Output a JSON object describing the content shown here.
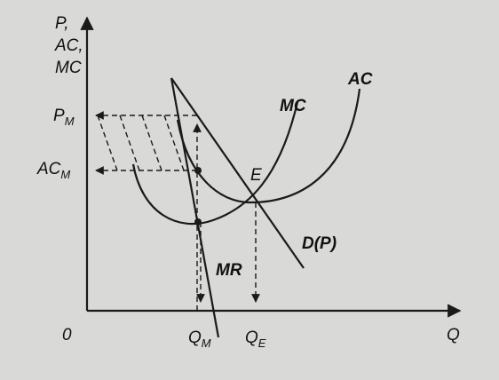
{
  "y_axis": {
    "lines": [
      "P,",
      "AC,",
      "MC"
    ]
  },
  "x_axis": {
    "label": "Q"
  },
  "origin": "0",
  "price_labels": [
    {
      "text": "P",
      "sub": "M"
    },
    {
      "text": "AC",
      "sub": "M"
    }
  ],
  "quantity_labels": [
    {
      "text": "Q",
      "sub": "M"
    },
    {
      "text": "Q",
      "sub": "E"
    }
  ],
  "curve_labels": {
    "mc": "MC",
    "ac": "AC",
    "equilibrium": "E",
    "demand": "D(P)",
    "mr": "MR"
  }
}
